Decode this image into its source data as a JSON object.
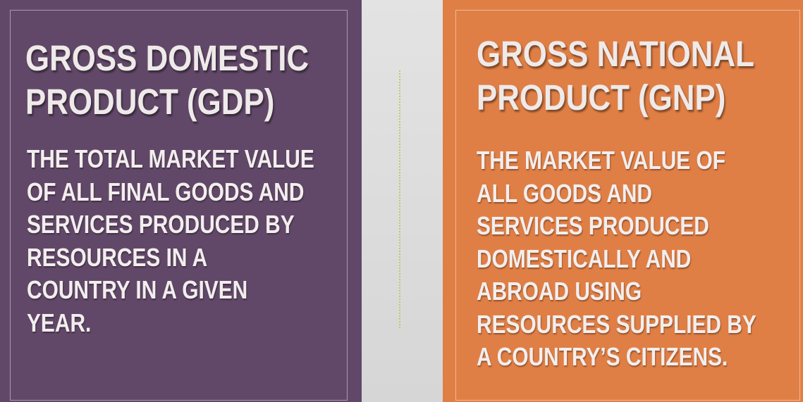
{
  "slide": {
    "colors": {
      "left_panel": "#624868",
      "right_panel": "#e07f45",
      "background": "#dcdcdc",
      "divider": "#b7cf63",
      "text": "#efeaea"
    },
    "left": {
      "title": "GROSS DOMESTIC\nPRODUCT (GDP)",
      "definition": "THE TOTAL MARKET VALUE\nOF ALL FINAL GOODS AND\nSERVICES PRODUCED BY\nRESOURCES IN A\nCOUNTRY IN A GIVEN\nYEAR."
    },
    "right": {
      "title": "GROSS NATIONAL\nPRODUCT (GNP)",
      "definition": "THE MARKET VALUE OF\nALL GOODS AND\nSERVICES PRODUCED\nDOMESTICALLY AND\nABROAD USING\nRESOURCES SUPPLIED BY\nA COUNTRY’S CITIZENS."
    }
  }
}
